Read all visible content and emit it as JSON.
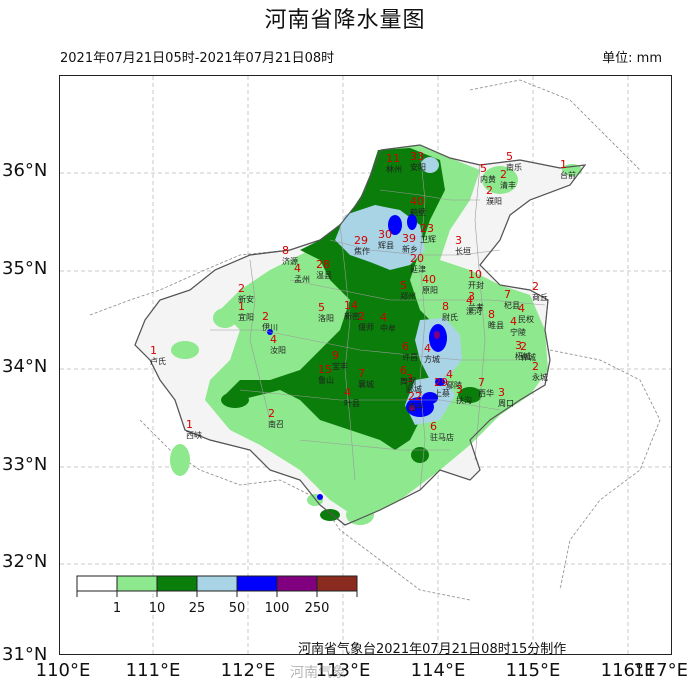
{
  "map": {
    "title": "河南省降水量图",
    "period": "2021年07月21日05时-2021年07月21日08时",
    "unit": "单位: mm",
    "credit": "河南省气象台2021年07月21日08时15分制作",
    "watermark": "河南气象",
    "lat_labels": [
      "36°N",
      "35°N",
      "34°N",
      "33°N",
      "32°N",
      "31°N"
    ],
    "lon_labels": [
      "110°E",
      "111°E",
      "112°E",
      "113°E",
      "114°E",
      "115°E",
      "116°E",
      "117°E"
    ],
    "legend": {
      "ticks": [
        "1",
        "10",
        "25",
        "50",
        "100",
        "250"
      ],
      "colors": [
        "#ffffff",
        "#8ee88e",
        "#0a7d0a",
        "#a8d4e6",
        "#0000ff",
        "#800080",
        "#8b2a1f"
      ]
    },
    "stations": [
      {
        "name": "林州",
        "value": "11"
      },
      {
        "name": "安阳",
        "value": "33"
      },
      {
        "name": "内黄",
        "value": "5"
      },
      {
        "name": "清丰",
        "value": "2"
      },
      {
        "name": "南乐",
        "value": "5"
      },
      {
        "name": "濮阳",
        "value": "2"
      },
      {
        "name": "台前",
        "value": "1"
      },
      {
        "name": "鹤壁",
        "value": "40"
      },
      {
        "name": "辉县",
        "value": "30"
      },
      {
        "name": "新乡",
        "value": "39"
      },
      {
        "name": "卫辉",
        "value": "23"
      },
      {
        "name": "延津",
        "value": "20"
      },
      {
        "name": "长垣",
        "value": "3"
      },
      {
        "name": "焦作",
        "value": "29"
      },
      {
        "name": "济源",
        "value": "8"
      },
      {
        "name": "孟州",
        "value": "4"
      },
      {
        "name": "温县",
        "value": "28"
      },
      {
        "name": "原阳",
        "value": "40"
      },
      {
        "name": "开封",
        "value": "10"
      },
      {
        "name": "兰考",
        "value": "3"
      },
      {
        "name": "郑州",
        "value": "5"
      },
      {
        "name": "新密",
        "value": "14"
      },
      {
        "name": "中牟",
        "value": "4"
      },
      {
        "name": "尉氏",
        "value": "8"
      },
      {
        "name": "杞县",
        "value": "7"
      },
      {
        "name": "民权",
        "value": "4"
      },
      {
        "name": "睢县",
        "value": "8"
      },
      {
        "name": "宁陵",
        "value": "4"
      },
      {
        "name": "商丘",
        "value": "2"
      },
      {
        "name": "永城",
        "value": "2"
      },
      {
        "name": "柘城",
        "value": "3"
      },
      {
        "name": "洛阳",
        "value": "5"
      },
      {
        "name": "偃师",
        "value": "2"
      },
      {
        "name": "伊川",
        "value": "2"
      },
      {
        "name": "汝阳",
        "value": "4"
      },
      {
        "name": "宜阳",
        "value": "1"
      },
      {
        "name": "新安",
        "value": "2"
      },
      {
        "name": "卢氏",
        "value": "1"
      },
      {
        "name": "西峡",
        "value": "1"
      },
      {
        "name": "南召",
        "value": "2"
      },
      {
        "name": "鲁山",
        "value": "15"
      },
      {
        "name": "宝丰",
        "value": "9"
      },
      {
        "name": "襄城",
        "value": "7"
      },
      {
        "name": "叶县",
        "value": "4"
      },
      {
        "name": "许昌",
        "value": "6"
      },
      {
        "name": "鄢陵",
        "value": "4"
      },
      {
        "name": "扶沟",
        "value": "3"
      },
      {
        "name": "西华",
        "value": "7"
      },
      {
        "name": "周口",
        "value": "3"
      },
      {
        "name": "郸城",
        "value": "2"
      },
      {
        "name": "郾城",
        "value": "3"
      },
      {
        "name": "漯河",
        "value": "4"
      },
      {
        "name": "上蔡",
        "value": "29"
      },
      {
        "name": "西平",
        "value": "22"
      },
      {
        "name": "驻马店",
        "value": "6"
      },
      {
        "name": "方城",
        "value": "4"
      },
      {
        "name": "舞钢",
        "value": "6"
      }
    ]
  }
}
